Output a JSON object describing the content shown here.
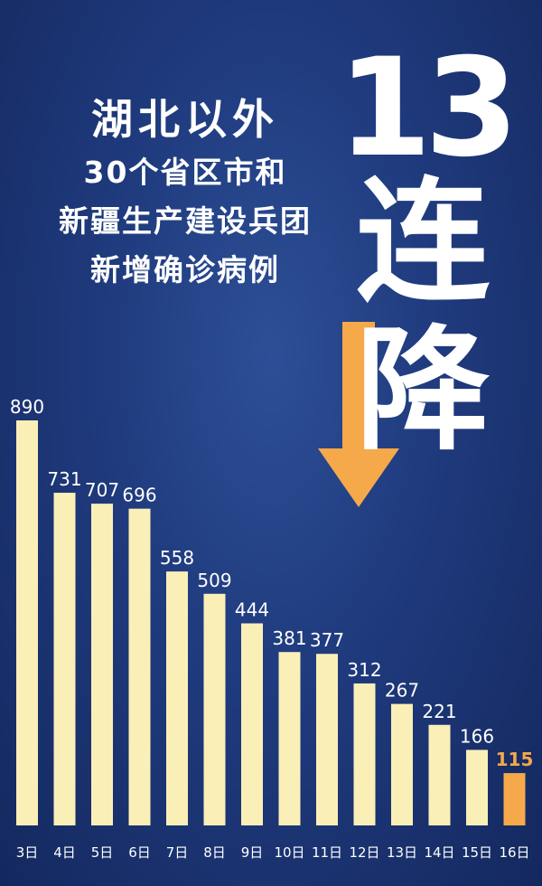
{
  "title": {
    "line1": "湖北以外",
    "line2": "30个省区市和",
    "line3": "新疆生产建设兵团",
    "line4": "新增确诊病例"
  },
  "headline": {
    "number": "13",
    "char1": "连",
    "char2": "降"
  },
  "colors": {
    "bar": "#fbefb8",
    "highlight": "#f5a94a",
    "label": "#ffffff",
    "background": "#1f3a7d"
  },
  "icons": {
    "arrow": "down-arrow-icon"
  },
  "chart_data": {
    "type": "bar",
    "categories": [
      "3日",
      "4日",
      "5日",
      "6日",
      "7日",
      "8日",
      "9日",
      "10日",
      "11日",
      "12日",
      "13日",
      "14日",
      "15日",
      "16日"
    ],
    "values": [
      890,
      731,
      707,
      696,
      558,
      509,
      444,
      381,
      377,
      312,
      267,
      221,
      166,
      115
    ],
    "highlight_index": 13,
    "ylim": [
      0,
      890
    ],
    "grid": false,
    "legend": "none"
  }
}
